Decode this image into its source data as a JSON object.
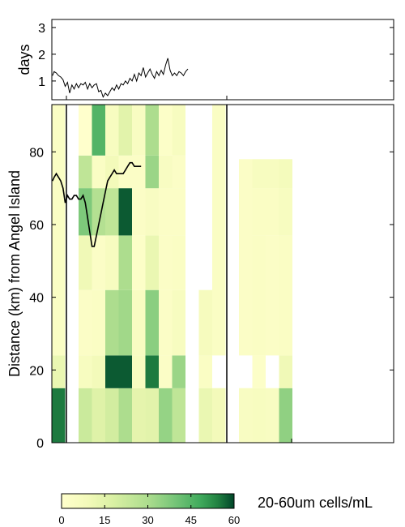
{
  "chart_data": [
    {
      "type": "line",
      "panel": "top",
      "ylabel": "days",
      "yticks": [
        1,
        2,
        3
      ],
      "ylim": [
        0.3,
        3.3
      ],
      "x_km_range": [
        0,
        92
      ],
      "series": [
        {
          "values": [
            [
              0.3,
              1.2
            ],
            [
              1,
              1.35
            ],
            [
              2,
              1.3
            ],
            [
              3,
              1.2
            ],
            [
              4,
              1.15
            ],
            [
              5,
              1.05
            ],
            [
              6,
              0.8
            ],
            [
              7,
              0.95
            ],
            [
              8,
              0.55
            ],
            [
              9,
              0.85
            ],
            [
              10,
              0.7
            ],
            [
              11,
              0.9
            ],
            [
              12,
              0.75
            ],
            [
              13,
              0.9
            ],
            [
              14,
              0.85
            ],
            [
              15,
              0.95
            ],
            [
              16,
              0.7
            ],
            [
              17,
              0.9
            ],
            [
              18,
              0.75
            ],
            [
              19,
              0.85
            ],
            [
              20,
              0.9
            ],
            [
              21,
              0.6
            ],
            [
              22,
              0.65
            ],
            [
              23,
              0.4
            ],
            [
              24,
              0.55
            ],
            [
              25,
              0.45
            ],
            [
              26,
              0.6
            ],
            [
              27,
              0.75
            ],
            [
              28,
              0.65
            ],
            [
              29,
              0.85
            ],
            [
              30,
              0.7
            ],
            [
              31,
              0.9
            ],
            [
              32,
              0.85
            ],
            [
              33,
              1.0
            ],
            [
              34,
              0.9
            ],
            [
              35,
              1.1
            ],
            [
              36,
              1.0
            ],
            [
              37,
              1.25
            ],
            [
              38,
              1.0
            ],
            [
              39,
              1.3
            ],
            [
              40,
              1.2
            ],
            [
              41,
              1.5
            ],
            [
              42,
              1.15
            ],
            [
              43,
              1.3
            ],
            [
              44,
              1.45
            ],
            [
              45,
              1.25
            ],
            [
              46,
              1.1
            ],
            [
              47,
              1.35
            ],
            [
              48,
              1.2
            ],
            [
              49,
              1.4
            ],
            [
              50,
              1.25
            ],
            [
              51,
              1.6
            ],
            [
              52,
              1.85
            ],
            [
              53,
              1.4
            ],
            [
              54,
              1.2
            ],
            [
              55,
              1.3
            ],
            [
              56,
              1.2
            ],
            [
              57,
              1.35
            ],
            [
              58,
              1.3
            ],
            [
              59,
              1.2
            ],
            [
              60,
              1.35
            ],
            [
              61,
              1.45
            ]
          ]
        }
      ]
    },
    {
      "type": "heatmap",
      "panel": "bottom",
      "ylabel": "Distance (km) from Angel Island",
      "yticks": [
        0,
        20,
        40,
        60,
        80
      ],
      "ylim": [
        0,
        93
      ],
      "colorbar": {
        "label": "20-60um cells/mL",
        "min": 0,
        "max": 60,
        "ticks": [
          0,
          15,
          30,
          45,
          60
        ]
      },
      "columns": [
        {
          "segments": [
            [
              0,
              15,
              55
            ],
            [
              15,
              24,
              12
            ],
            [
              24,
              93,
              4
            ]
          ]
        },
        {
          "segments": []
        },
        {
          "segments": [
            [
              0,
              15,
              22
            ],
            [
              15,
              24,
              6
            ],
            [
              24,
              42,
              3
            ],
            [
              42,
              57,
              10
            ],
            [
              57,
              70,
              38
            ],
            [
              70,
              79,
              25
            ],
            [
              79,
              93,
              0
            ]
          ]
        },
        {
          "segments": [
            [
              0,
              15,
              16
            ],
            [
              15,
              24,
              9
            ],
            [
              24,
              42,
              4
            ],
            [
              42,
              57,
              3
            ],
            [
              57,
              70,
              28
            ],
            [
              70,
              79,
              4
            ],
            [
              79,
              93,
              45
            ]
          ]
        },
        {
          "segments": [
            [
              0,
              15,
              20
            ],
            [
              15,
              24,
              58
            ],
            [
              24,
              42,
              30
            ],
            [
              42,
              57,
              6
            ],
            [
              57,
              70,
              25
            ],
            [
              70,
              79,
              9
            ],
            [
              79,
              93,
              6
            ]
          ]
        },
        {
          "segments": [
            [
              0,
              15,
              30
            ],
            [
              15,
              24,
              58
            ],
            [
              24,
              42,
              32
            ],
            [
              42,
              57,
              30
            ],
            [
              57,
              70,
              58
            ],
            [
              70,
              79,
              3
            ],
            [
              79,
              93,
              15
            ]
          ]
        },
        {
          "segments": [
            [
              0,
              15,
              14
            ],
            [
              15,
              24,
              6
            ],
            [
              24,
              42,
              5
            ],
            [
              42,
              57,
              2
            ],
            [
              57,
              70,
              3
            ],
            [
              70,
              79,
              3
            ],
            [
              79,
              93,
              5
            ]
          ]
        },
        {
          "segments": [
            [
              0,
              15,
              15
            ],
            [
              15,
              24,
              55
            ],
            [
              24,
              42,
              36
            ],
            [
              42,
              57,
              12
            ],
            [
              57,
              70,
              5
            ],
            [
              70,
              79,
              33
            ],
            [
              79,
              93,
              30
            ]
          ]
        },
        {
          "segments": [
            [
              0,
              15,
              34
            ],
            [
              15,
              24,
              3
            ],
            [
              24,
              42,
              3
            ],
            [
              42,
              57,
              3
            ],
            [
              57,
              70,
              3
            ],
            [
              70,
              79,
              5
            ],
            [
              79,
              93,
              2
            ]
          ]
        },
        {
          "segments": [
            [
              0,
              15,
              25
            ],
            [
              15,
              24,
              33
            ],
            [
              24,
              42,
              6
            ],
            [
              42,
              57,
              4
            ],
            [
              57,
              70,
              3
            ],
            [
              70,
              79,
              3
            ],
            [
              79,
              93,
              6
            ]
          ]
        },
        {
          "segments": []
        },
        {
          "segments": [
            [
              0,
              15,
              12
            ],
            [
              15,
              24,
              4
            ],
            [
              24,
              42,
              7
            ]
          ]
        },
        {
          "segments": [
            [
              0,
              15,
              9
            ],
            [
              24,
              93,
              4
            ]
          ]
        },
        {
          "segments": []
        },
        {
          "segments": [
            [
              0,
              15,
              5
            ],
            [
              24,
              78,
              3
            ]
          ]
        },
        {
          "segments": [
            [
              0,
              15,
              6
            ],
            [
              15,
              24,
              2
            ],
            [
              24,
              57,
              4
            ],
            [
              57,
              70,
              4
            ],
            [
              70,
              78,
              6
            ]
          ]
        },
        {
          "segments": [
            [
              0,
              15,
              5
            ],
            [
              24,
              57,
              3
            ],
            [
              57,
              70,
              4
            ],
            [
              70,
              78,
              6
            ]
          ]
        },
        {
          "segments": [
            [
              0,
              15,
              35
            ],
            [
              15,
              24,
              10
            ],
            [
              24,
              57,
              4
            ],
            [
              57,
              70,
              6
            ],
            [
              70,
              78,
              8
            ]
          ]
        }
      ],
      "line_series": {
        "values": [
          [
            0.3,
            72
          ],
          [
            1,
            73
          ],
          [
            2,
            74
          ],
          [
            3,
            73
          ],
          [
            4,
            72
          ],
          [
            5,
            70
          ],
          [
            6,
            66
          ],
          [
            7,
            68
          ],
          [
            8,
            67
          ],
          [
            9,
            67
          ],
          [
            10,
            68
          ],
          [
            11,
            68
          ],
          [
            12,
            67
          ],
          [
            13,
            67
          ],
          [
            14,
            68
          ],
          [
            15,
            66
          ],
          [
            16,
            62
          ],
          [
            17,
            58
          ],
          [
            18,
            54
          ],
          [
            19,
            54
          ],
          [
            20,
            57
          ],
          [
            21,
            60
          ],
          [
            22,
            63
          ],
          [
            23,
            66
          ],
          [
            24,
            69
          ],
          [
            25,
            72
          ],
          [
            26,
            73
          ],
          [
            27,
            74
          ],
          [
            28,
            75
          ],
          [
            29,
            74
          ],
          [
            30,
            74
          ],
          [
            31,
            74
          ],
          [
            32,
            74
          ],
          [
            33,
            75
          ],
          [
            34,
            76
          ],
          [
            35,
            77
          ],
          [
            36,
            77
          ],
          [
            37,
            76
          ],
          [
            38,
            76
          ],
          [
            39,
            76
          ],
          [
            40,
            76
          ]
        ]
      }
    }
  ]
}
